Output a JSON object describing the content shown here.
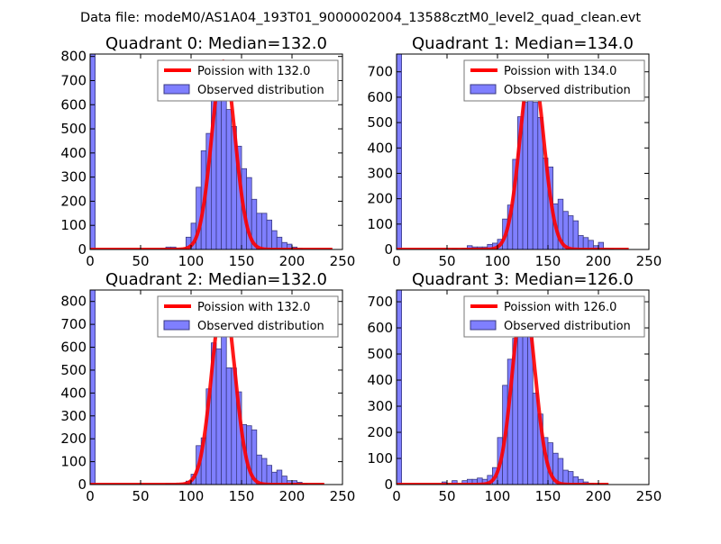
{
  "suptitle": "Data file: modeM0/AS1A04_193T01_9000002004_13588cztM0_level2_quad_clean.evt",
  "legend": {
    "poisson_prefix": "Poission with ",
    "observed": "Observed distribution"
  },
  "colors": {
    "bar_fill": "#7f7fff",
    "bar_edge": "#3a3a80",
    "poisson": "#ff0000"
  },
  "chart_data": [
    {
      "type": "bar",
      "title": "Quadrant 0: Median=132.0",
      "median": 132.0,
      "poisson_label": "132.0",
      "poisson_peak": 780,
      "poisson_xmax": 240,
      "bin_width": 5,
      "bins": [
        0,
        70,
        75,
        80,
        85,
        90,
        95,
        100,
        105,
        110,
        115,
        120,
        125,
        130,
        135,
        140,
        145,
        150,
        155,
        160,
        165,
        170,
        175,
        180,
        185,
        190,
        195,
        200,
        205
      ],
      "values": [
        810,
        5,
        10,
        10,
        5,
        5,
        51,
        109,
        258,
        409,
        481,
        643,
        700,
        770,
        580,
        510,
        428,
        335,
        298,
        208,
        150,
        150,
        122,
        78,
        51,
        29,
        22,
        10,
        5
      ],
      "xlim": [
        0,
        250
      ],
      "ylim": [
        0,
        810
      ],
      "xticks": [
        0,
        50,
        100,
        150,
        200,
        250
      ],
      "yticks": [
        0,
        100,
        200,
        300,
        400,
        500,
        600,
        700,
        800
      ],
      "legend_position": "top-right"
    },
    {
      "type": "bar",
      "title": "Quadrant 1: Median=134.0",
      "median": 134.0,
      "poisson_label": "134.0",
      "poisson_peak": 735,
      "poisson_xmax": 230,
      "bin_width": 5,
      "bins": [
        0,
        55,
        65,
        70,
        75,
        80,
        85,
        90,
        95,
        100,
        105,
        110,
        115,
        120,
        125,
        130,
        135,
        140,
        145,
        150,
        155,
        160,
        165,
        170,
        175,
        180,
        185,
        190,
        195,
        200,
        205,
        210
      ],
      "values": [
        770,
        3,
        5,
        15,
        10,
        10,
        10,
        20,
        25,
        40,
        120,
        175,
        355,
        523,
        580,
        700,
        580,
        520,
        360,
        325,
        180,
        198,
        150,
        133,
        113,
        55,
        47,
        36,
        15,
        28,
        5,
        3
      ],
      "xlim": [
        0,
        250
      ],
      "ylim": [
        0,
        770
      ],
      "xticks": [
        0,
        50,
        100,
        150,
        200,
        250
      ],
      "yticks": [
        0,
        100,
        200,
        300,
        400,
        500,
        600,
        700
      ],
      "legend_position": "top-right"
    },
    {
      "type": "bar",
      "title": "Quadrant 2: Median=132.0",
      "median": 132.0,
      "poisson_label": "132.0",
      "poisson_peak": 815,
      "poisson_xmax": 232,
      "bin_width": 5,
      "bins": [
        0,
        75,
        80,
        85,
        90,
        95,
        100,
        105,
        110,
        115,
        120,
        125,
        130,
        135,
        140,
        145,
        150,
        155,
        160,
        165,
        170,
        175,
        180,
        185,
        190,
        195,
        200,
        205,
        210
      ],
      "values": [
        850,
        5,
        5,
        5,
        5,
        15,
        45,
        170,
        204,
        418,
        619,
        593,
        820,
        510,
        509,
        405,
        262,
        257,
        239,
        129,
        114,
        84,
        54,
        63,
        37,
        17,
        17,
        10,
        3
      ],
      "xlim": [
        0,
        250
      ],
      "ylim": [
        0,
        850
      ],
      "xticks": [
        0,
        50,
        100,
        150,
        200,
        250
      ],
      "yticks": [
        0,
        100,
        200,
        300,
        400,
        500,
        600,
        700,
        800
      ],
      "legend_position": "top-right"
    },
    {
      "type": "bar",
      "title": "Quadrant 3: Median=126.0",
      "median": 126.0,
      "poisson_label": "126.0",
      "poisson_peak": 715,
      "poisson_xmax": 210,
      "bin_width": 5,
      "bins": [
        0,
        45,
        50,
        55,
        60,
        65,
        70,
        75,
        80,
        85,
        90,
        95,
        100,
        105,
        110,
        115,
        120,
        125,
        130,
        135,
        140,
        145,
        150,
        155,
        160,
        165,
        170,
        175,
        180,
        185,
        190
      ],
      "values": [
        745,
        10,
        5,
        15,
        5,
        15,
        20,
        20,
        25,
        20,
        35,
        65,
        180,
        380,
        480,
        560,
        710,
        720,
        580,
        350,
        270,
        180,
        160,
        120,
        100,
        55,
        50,
        30,
        20,
        10,
        5
      ],
      "xlim": [
        0,
        250
      ],
      "ylim": [
        0,
        745
      ],
      "xticks": [
        0,
        50,
        100,
        150,
        200,
        250
      ],
      "yticks": [
        0,
        100,
        200,
        300,
        400,
        500,
        600,
        700
      ],
      "legend_position": "top-right"
    }
  ]
}
